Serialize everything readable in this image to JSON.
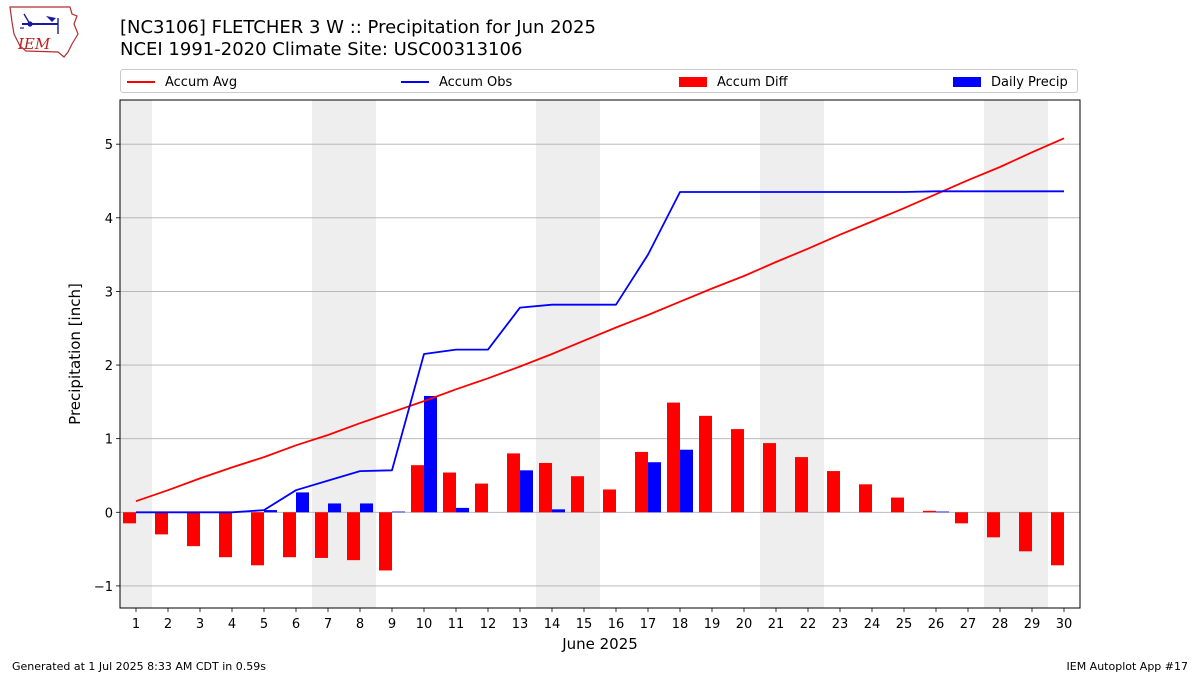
{
  "header": {
    "title_line1": "[NC3106] FLETCHER 3 W :: Precipitation for Jun 2025",
    "title_line2": "NCEI 1991-2020 Climate Site: USC00313106"
  },
  "logo": {
    "text": "IEM",
    "icon": "iem-logo-icon"
  },
  "legend": {
    "accum_avg": "Accum Avg",
    "accum_obs": "Accum Obs",
    "accum_diff": "Accum Diff",
    "daily_precip": "Daily Precip"
  },
  "footer": {
    "left": "Generated at 1 Jul 2025 8:33 AM CDT in 0.59s",
    "right": "IEM Autoplot App #17"
  },
  "colors": {
    "accum_avg": "#ff0000",
    "accum_obs": "#0000ff",
    "accum_diff": "#ff0000",
    "daily_precip": "#0000ff",
    "weekend_shade": "#eeeeee",
    "grid": "#b0b0b0"
  },
  "chart_data": {
    "type": "bar",
    "xlabel": "June 2025",
    "ylabel": "Precipitation [inch]",
    "xlim": [
      0.5,
      30.5
    ],
    "ylim": [
      -1.3,
      5.6
    ],
    "yticks": [
      -1,
      0,
      1,
      2,
      3,
      4,
      5
    ],
    "ytick_labels": [
      "−1",
      "0",
      "1",
      "2",
      "3",
      "4",
      "5"
    ],
    "grid": "horizontal",
    "legend_position": "top",
    "shaded_days": [
      [
        0.5,
        1.5
      ],
      [
        6.5,
        8.5
      ],
      [
        13.5,
        15.5
      ],
      [
        20.5,
        22.5
      ],
      [
        27.5,
        29.5
      ]
    ],
    "x": [
      1,
      2,
      3,
      4,
      5,
      6,
      7,
      8,
      9,
      10,
      11,
      12,
      13,
      14,
      15,
      16,
      17,
      18,
      19,
      20,
      21,
      22,
      23,
      24,
      25,
      26,
      27,
      28,
      29,
      30
    ],
    "series": [
      {
        "name": "Accum Avg",
        "kind": "line",
        "values": [
          0.15,
          0.3,
          0.46,
          0.61,
          0.75,
          0.91,
          1.05,
          1.21,
          1.36,
          1.51,
          1.67,
          1.82,
          1.98,
          2.15,
          2.33,
          2.51,
          2.68,
          2.86,
          3.04,
          3.21,
          3.4,
          3.58,
          3.77,
          3.95,
          4.13,
          4.32,
          4.51,
          4.69,
          4.89,
          5.08
        ]
      },
      {
        "name": "Accum Obs",
        "kind": "line",
        "values": [
          0.0,
          0.0,
          0.0,
          0.0,
          0.03,
          0.3,
          0.43,
          0.56,
          0.57,
          2.15,
          2.21,
          2.21,
          2.78,
          2.82,
          2.82,
          2.82,
          3.5,
          4.35,
          4.35,
          4.35,
          4.35,
          4.35,
          4.35,
          4.35,
          4.35,
          4.36,
          4.36,
          4.36,
          4.36,
          4.36
        ]
      },
      {
        "name": "Accum Diff",
        "kind": "bar",
        "values": [
          -0.15,
          -0.3,
          -0.46,
          -0.61,
          -0.72,
          -0.61,
          -0.62,
          -0.65,
          -0.79,
          0.64,
          0.54,
          0.39,
          0.8,
          0.67,
          0.49,
          0.31,
          0.82,
          1.49,
          1.31,
          1.13,
          0.94,
          0.75,
          0.56,
          0.38,
          0.2,
          0.02,
          -0.15,
          -0.34,
          -0.53,
          -0.72
        ]
      },
      {
        "name": "Daily Precip",
        "kind": "bar",
        "values": [
          0.0,
          0.0,
          0.0,
          0.0,
          0.03,
          0.27,
          0.12,
          0.12,
          0.01,
          1.58,
          0.06,
          0.0,
          0.57,
          0.04,
          0.0,
          0.0,
          0.68,
          0.85,
          0.0,
          0.0,
          0.0,
          0.0,
          0.0,
          0.0,
          0.0,
          0.01,
          0.0,
          0.0,
          0.0,
          0.0
        ]
      }
    ]
  }
}
